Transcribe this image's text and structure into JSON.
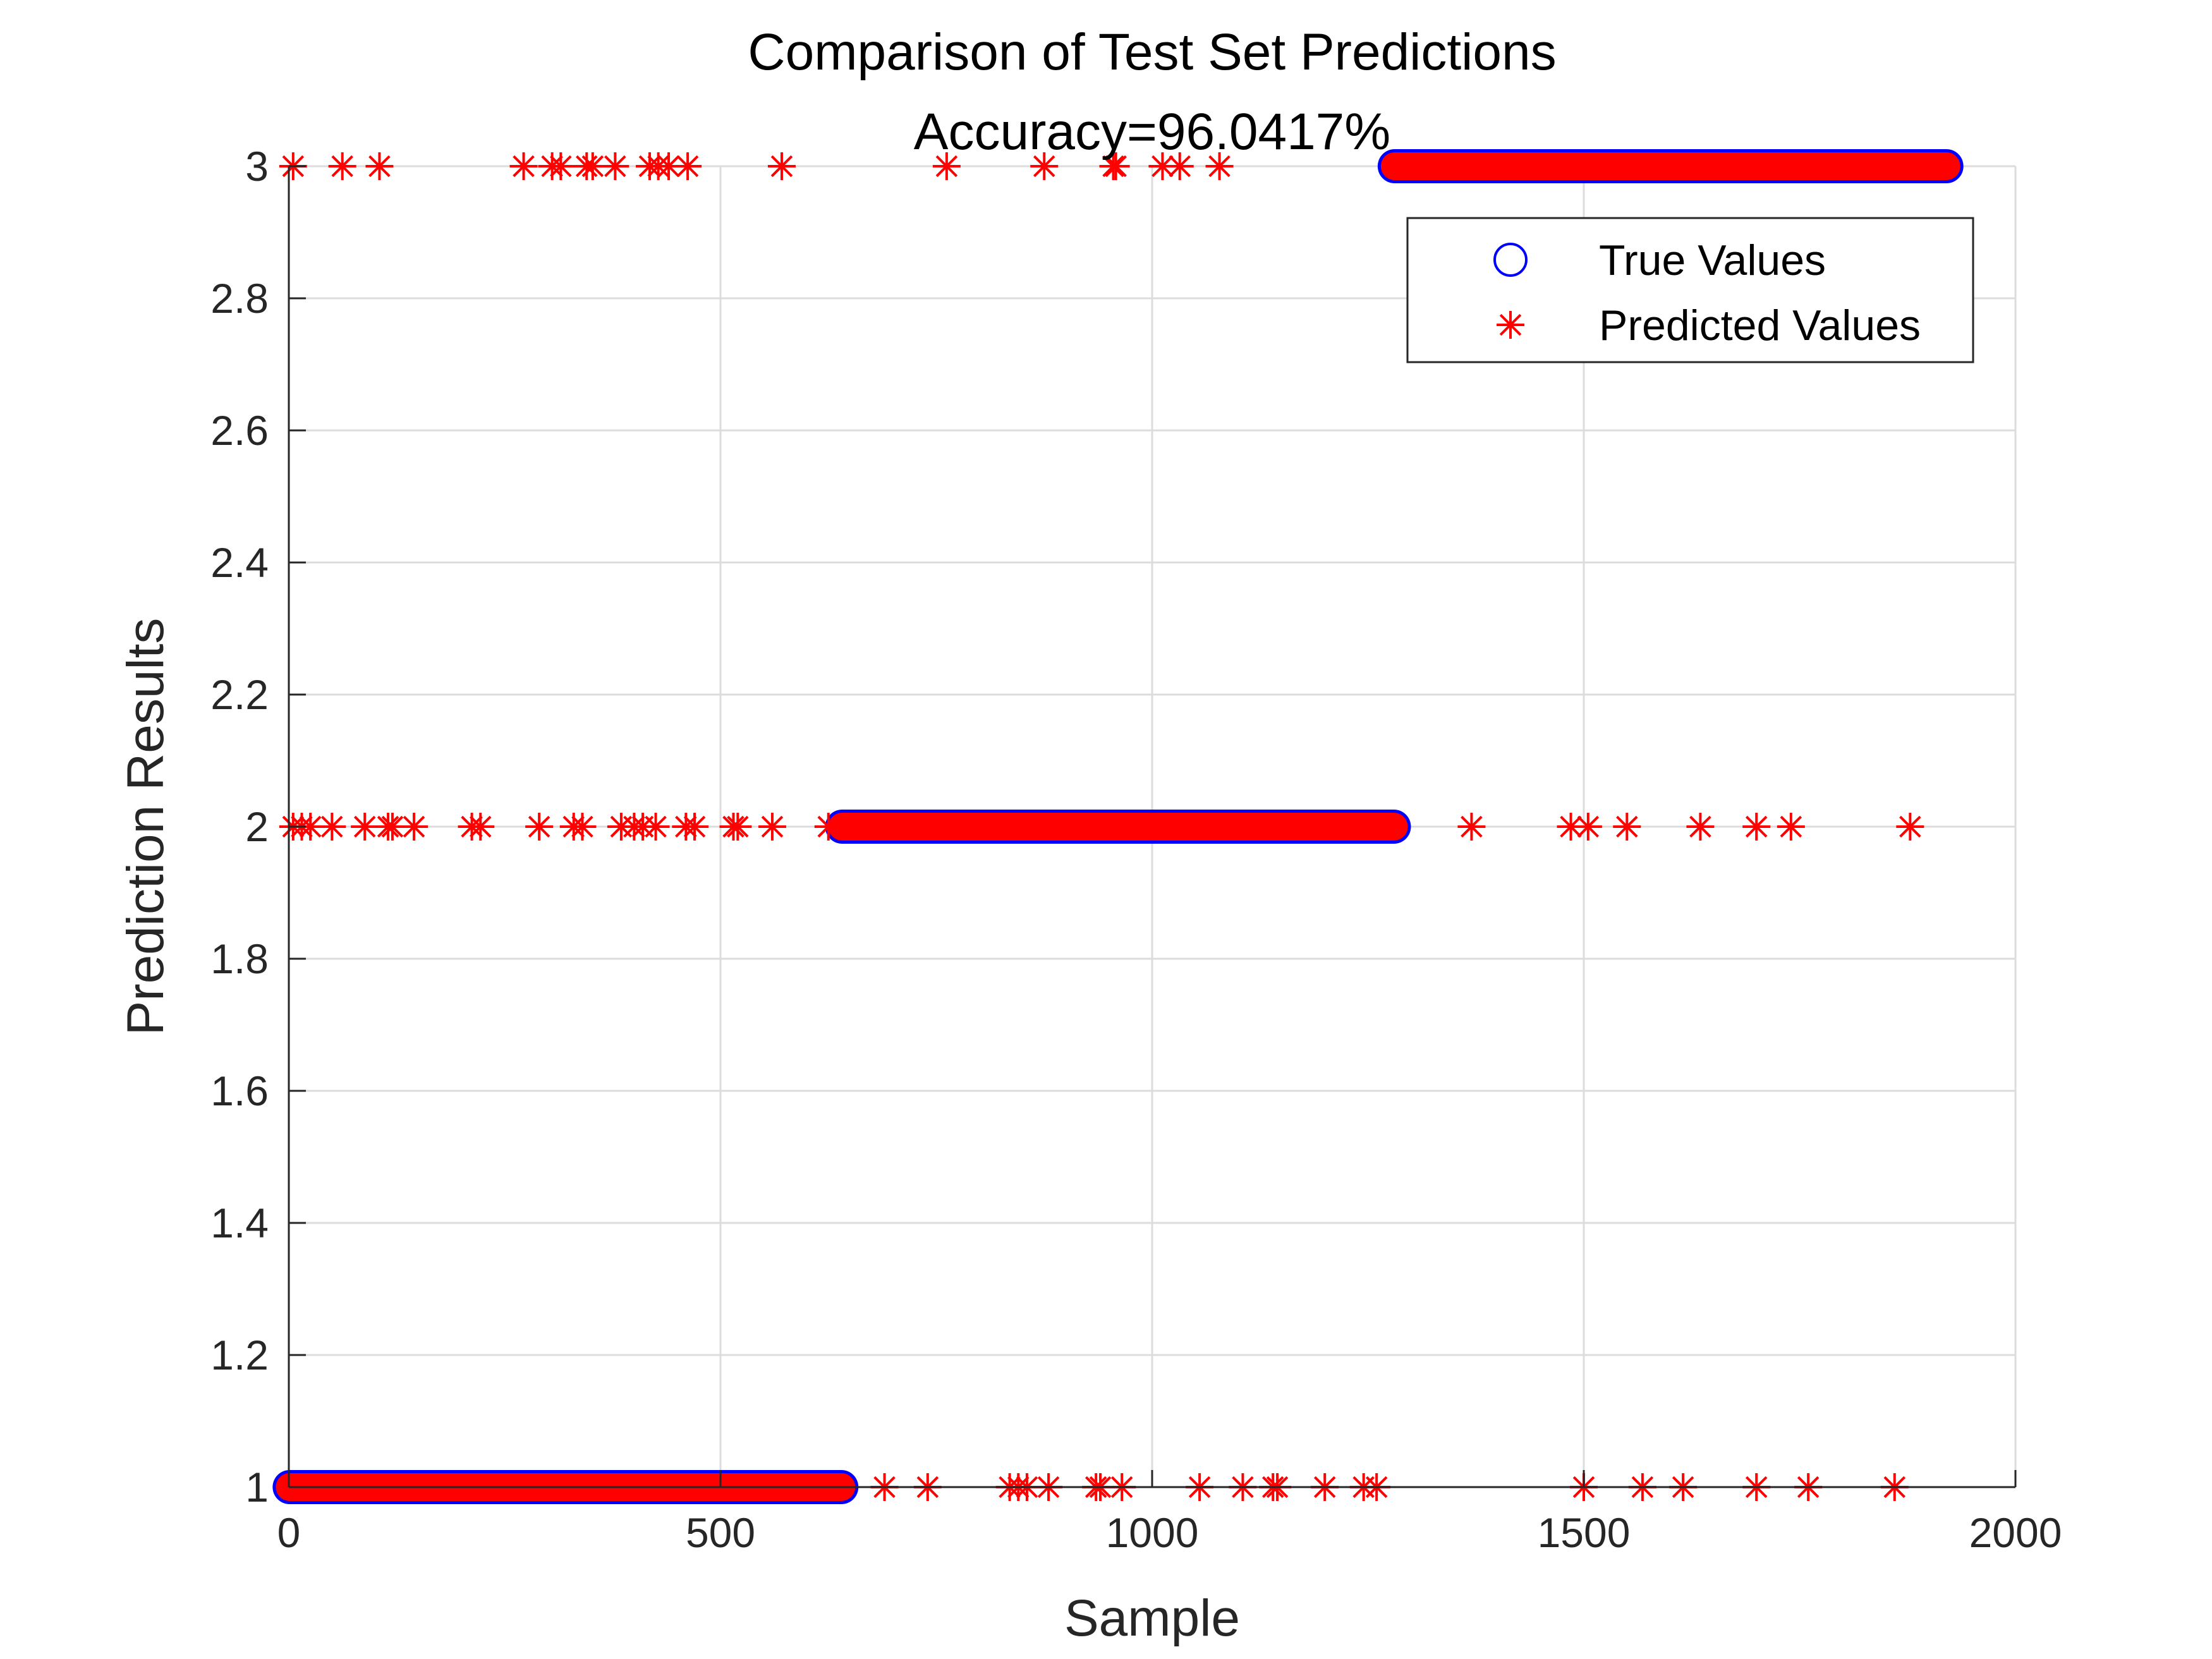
{
  "chart_data": {
    "type": "scatter",
    "title": "Comparison of Test Set Predictions",
    "subtitle": "Accuracy=96.0417%",
    "xlabel": "Sample",
    "ylabel": "Prediction Results",
    "xlim": [
      0,
      2000
    ],
    "ylim": [
      1,
      3
    ],
    "xticks": [
      "0",
      "500",
      "1000",
      "1500",
      "2000"
    ],
    "yticks": [
      "1",
      "1.2",
      "1.4",
      "1.6",
      "1.8",
      "2",
      "2.2",
      "2.4",
      "2.6",
      "2.8",
      "3"
    ],
    "grid": true,
    "legend_position": "top-right",
    "legend": [
      "True Values",
      "Predicted Values"
    ],
    "true_values": {
      "name": "True Values",
      "marker": "circle",
      "color": "#0000ff",
      "segments": [
        {
          "x_start": 1,
          "x_end": 640,
          "y": 1
        },
        {
          "x_start": 641,
          "x_end": 1280,
          "y": 2
        },
        {
          "x_start": 1281,
          "x_end": 1920,
          "y": 3
        }
      ]
    },
    "predicted_values": {
      "name": "Predicted Values",
      "marker": "asterisk",
      "color": "#ff0000",
      "segments": [
        {
          "x_start": 1,
          "x_end": 640,
          "y": 1
        },
        {
          "x_start": 641,
          "x_end": 1280,
          "y": 2
        },
        {
          "x_start": 1281,
          "x_end": 1920,
          "y": 3
        }
      ],
      "misclassified": [
        {
          "x": 5,
          "y": 3
        },
        {
          "x": 62,
          "y": 3
        },
        {
          "x": 105,
          "y": 3
        },
        {
          "x": 272,
          "y": 3
        },
        {
          "x": 305,
          "y": 3
        },
        {
          "x": 315,
          "y": 3
        },
        {
          "x": 345,
          "y": 3
        },
        {
          "x": 352,
          "y": 3
        },
        {
          "x": 378,
          "y": 3
        },
        {
          "x": 418,
          "y": 3
        },
        {
          "x": 428,
          "y": 3
        },
        {
          "x": 440,
          "y": 3
        },
        {
          "x": 462,
          "y": 3
        },
        {
          "x": 571,
          "y": 3
        },
        {
          "x": 762,
          "y": 3
        },
        {
          "x": 875,
          "y": 3
        },
        {
          "x": 955,
          "y": 3
        },
        {
          "x": 958,
          "y": 3
        },
        {
          "x": 1012,
          "y": 3
        },
        {
          "x": 1032,
          "y": 3
        },
        {
          "x": 1078,
          "y": 3
        },
        {
          "x": 5,
          "y": 2
        },
        {
          "x": 15,
          "y": 2
        },
        {
          "x": 25,
          "y": 2
        },
        {
          "x": 50,
          "y": 2
        },
        {
          "x": 88,
          "y": 2
        },
        {
          "x": 115,
          "y": 2
        },
        {
          "x": 120,
          "y": 2
        },
        {
          "x": 145,
          "y": 2
        },
        {
          "x": 212,
          "y": 2
        },
        {
          "x": 222,
          "y": 2
        },
        {
          "x": 290,
          "y": 2
        },
        {
          "x": 330,
          "y": 2
        },
        {
          "x": 340,
          "y": 2
        },
        {
          "x": 385,
          "y": 2
        },
        {
          "x": 400,
          "y": 2
        },
        {
          "x": 410,
          "y": 2
        },
        {
          "x": 425,
          "y": 2
        },
        {
          "x": 460,
          "y": 2
        },
        {
          "x": 470,
          "y": 2
        },
        {
          "x": 515,
          "y": 2
        },
        {
          "x": 520,
          "y": 2
        },
        {
          "x": 560,
          "y": 2
        },
        {
          "x": 625,
          "y": 2
        },
        {
          "x": 1370,
          "y": 2
        },
        {
          "x": 1485,
          "y": 2
        },
        {
          "x": 1505,
          "y": 2
        },
        {
          "x": 1550,
          "y": 2
        },
        {
          "x": 1635,
          "y": 2
        },
        {
          "x": 1700,
          "y": 2
        },
        {
          "x": 1740,
          "y": 2
        },
        {
          "x": 1878,
          "y": 2
        },
        {
          "x": 690,
          "y": 1
        },
        {
          "x": 740,
          "y": 1
        },
        {
          "x": 835,
          "y": 1
        },
        {
          "x": 845,
          "y": 1
        },
        {
          "x": 855,
          "y": 1
        },
        {
          "x": 880,
          "y": 1
        },
        {
          "x": 935,
          "y": 1
        },
        {
          "x": 940,
          "y": 1
        },
        {
          "x": 965,
          "y": 1
        },
        {
          "x": 1055,
          "y": 1
        },
        {
          "x": 1105,
          "y": 1
        },
        {
          "x": 1140,
          "y": 1
        },
        {
          "x": 1145,
          "y": 1
        },
        {
          "x": 1200,
          "y": 1
        },
        {
          "x": 1245,
          "y": 1
        },
        {
          "x": 1260,
          "y": 1
        },
        {
          "x": 1500,
          "y": 1
        },
        {
          "x": 1568,
          "y": 1
        },
        {
          "x": 1615,
          "y": 1
        },
        {
          "x": 1700,
          "y": 1
        },
        {
          "x": 1760,
          "y": 1
        },
        {
          "x": 1860,
          "y": 1
        }
      ]
    }
  }
}
